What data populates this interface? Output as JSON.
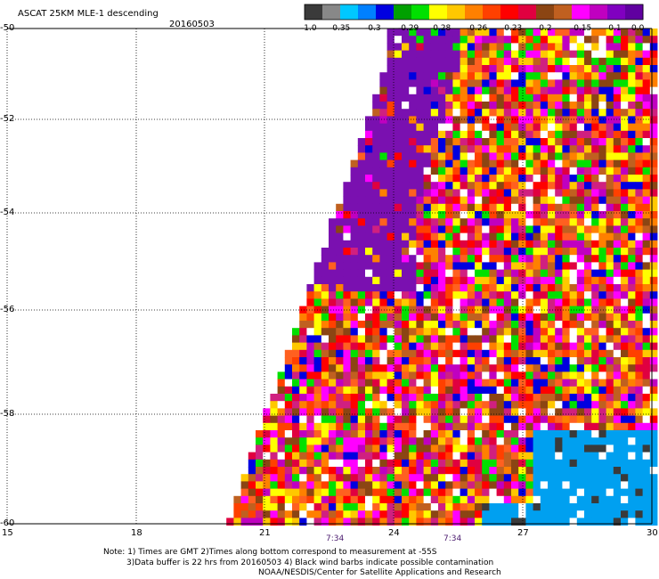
{
  "title": "ASCAT 25KM MLE-1 descending",
  "date": "20160503",
  "legend": {
    "labels": [
      "-1.0",
      "-0.35",
      "-0.3",
      "-0.29",
      "-0.28",
      "-0.26",
      "-0.23",
      "-0.2",
      "-0.15",
      "-0.1",
      "0.0"
    ],
    "colors": [
      "#3a3a3a",
      "#888888",
      "#00c8ff",
      "#0080ff",
      "#0000e0",
      "#00a000",
      "#00e000",
      "#ffff00",
      "#ffc800",
      "#ff8000",
      "#ff4000",
      "#ff0000",
      "#e00040",
      "#8b4513",
      "#c06020",
      "#ff00ff",
      "#c000c0",
      "#8000c0",
      "#6000a0"
    ]
  },
  "axes": {
    "lon_ticks": [
      "15",
      "18",
      "21",
      "24",
      "27",
      "30"
    ],
    "lat_ticks": [
      "-50",
      "-52",
      "-54",
      "-56",
      "-58",
      "-60"
    ]
  },
  "pass_times": [
    "7:34",
    "7:34"
  ],
  "notes": [
    "Note: 1) Times are GMT 2)Times along bottom correspond to measurement at -55S",
    "3)Data buffer is 22 hrs from 20160503 4) Black wind barbs indicate possible contamination",
    "NOAA/NESDIS/Center for Satellite Applications and Research"
  ]
}
